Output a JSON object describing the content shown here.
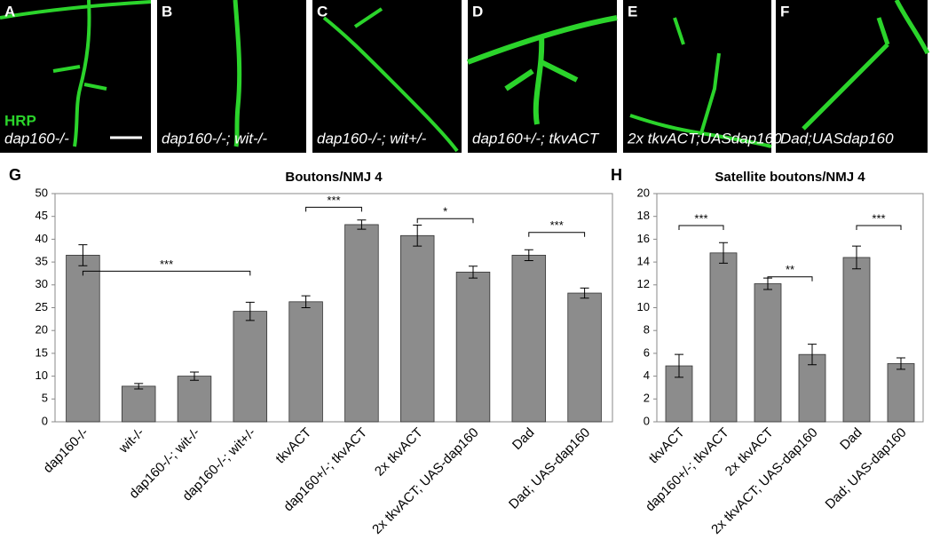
{
  "panels": [
    {
      "letter": "A",
      "caption": "dap160-/-",
      "stain": "HRP"
    },
    {
      "letter": "B",
      "caption": "dap160-/-; wit-/-"
    },
    {
      "letter": "C",
      "caption": "dap160-/-; wit+/-"
    },
    {
      "letter": "D",
      "caption": "dap160+/-; tkvACT"
    },
    {
      "letter": "E",
      "caption": "2x tkvACT;UASdap160"
    },
    {
      "letter": "F",
      "caption": "Dad;UASdap160"
    }
  ],
  "chart_data": [
    {
      "type": "bar",
      "panel": "G",
      "title": "Boutons/NMJ 4",
      "categories": [
        "dap160-/-",
        "wit-/-",
        "dap160-/-; wit-/-",
        "dap160-/-; wit+/-",
        "tkvACT",
        "dap160+/-; tkvACT",
        "2x tkvACT",
        "2x tkvACT; UAS-dap160",
        "Dad",
        "Dad; UAS-dap160"
      ],
      "values": [
        36.5,
        7.8,
        10,
        24.2,
        26.3,
        43.2,
        40.8,
        32.8,
        36.5,
        28.2
      ],
      "errors": [
        2.3,
        0.6,
        0.9,
        2,
        1.3,
        1,
        2.3,
        1.3,
        1.2,
        1.1
      ],
      "color": "#8c8c8c",
      "ylim": [
        0,
        50
      ],
      "yticks": [
        0,
        5,
        10,
        15,
        20,
        25,
        30,
        35,
        40,
        45,
        50
      ],
      "annotations": [
        "***",
        "***",
        "*",
        "***"
      ]
    },
    {
      "type": "bar",
      "panel": "H",
      "title": "Satellite boutons/NMJ 4",
      "categories": [
        "tkvACT",
        "dap160+/-; tkvACT",
        "2x tkvACT",
        "2x tkvACT; UAS-dap160",
        "Dad",
        "Dad; UAS-dap160"
      ],
      "values": [
        4.9,
        14.8,
        12.1,
        5.9,
        14.4,
        5.1
      ],
      "errors": [
        1,
        0.9,
        0.5,
        0.9,
        1,
        0.5
      ],
      "color": "#8c8c8c",
      "ylim": [
        0,
        20
      ],
      "yticks": [
        0,
        2,
        4,
        6,
        8,
        10,
        12,
        14,
        16,
        18,
        20
      ],
      "annotations": [
        "***",
        "**",
        "***"
      ]
    }
  ]
}
